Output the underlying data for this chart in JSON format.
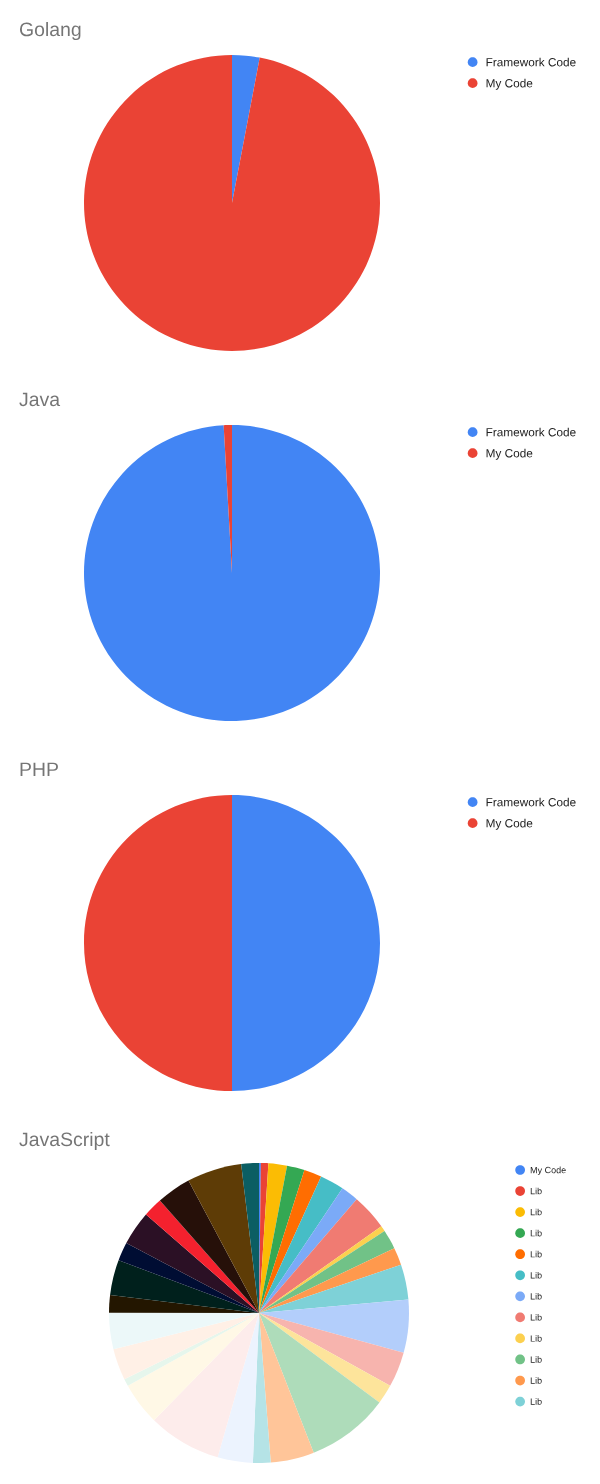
{
  "chart_data": [
    {
      "type": "pie",
      "title": "Golang",
      "categories": [
        "Framework Code",
        "My Code"
      ],
      "values": [
        3,
        97
      ],
      "colors": [
        "#4285f4",
        "#ea4335"
      ],
      "legend": "top right"
    },
    {
      "type": "pie",
      "title": "Java",
      "categories": [
        "Framework Code",
        "My Code"
      ],
      "values": [
        99.1,
        0.9
      ],
      "colors": [
        "#4285f4",
        "#ea4335"
      ],
      "legend": "top right"
    },
    {
      "type": "pie",
      "title": "PHP",
      "categories": [
        "Framework Code",
        "My Code"
      ],
      "values": [
        50,
        50
      ],
      "colors": [
        "#4285f4",
        "#ea4335"
      ],
      "legend": "top right"
    },
    {
      "type": "pie",
      "title": "JavaScript",
      "categories": [
        "My Code",
        "Lib",
        "Lib",
        "Lib",
        "Lib",
        "Lib",
        "Lib",
        "Lib",
        "Lib",
        "Lib",
        "Lib",
        "Lib",
        null,
        null,
        null,
        null,
        null,
        null,
        null,
        null,
        null,
        null,
        null,
        null,
        null,
        null,
        null,
        null,
        null,
        null,
        null,
        null
      ],
      "values": [
        0.2,
        0.8,
        2.0,
        1.9,
        1.9,
        2.6,
        1.9,
        3.9,
        0.6,
        2.1,
        1.9,
        3.8,
        5.7,
        3.8,
        2.1,
        8.9,
        4.7,
        1.9,
        3.8,
        7.9,
        4.6,
        0.8,
        3.4,
        3.9,
        1.9,
        3.8,
        2.0,
        3.7,
        2.1,
        3.7,
        5.9,
        1.9
      ],
      "colors": [
        "#4285f4",
        "#ea4335",
        "#fbbc04",
        "#34a853",
        "#ff6d01",
        "#46bdc6",
        "#7baaf7",
        "#f07b72",
        "#fcd04f",
        "#71c287",
        "#ff994d",
        "#7ed1d7",
        "#b3cefb",
        "#f7b4ae",
        "#fde49b",
        "#aedcba",
        "#ffc599",
        "#b5e3e6",
        "#ecf3fe",
        "#fdeceb",
        "#fff8e6",
        "#e6f6ec",
        "#fff0e6",
        "#ecf8f9",
        "#231600",
        "#00201c",
        "#000d33",
        "#2b1025",
        "#f4212e",
        "#261009",
        "#5e3c06",
        "#0b5e63"
      ],
      "legend": "top right"
    }
  ]
}
